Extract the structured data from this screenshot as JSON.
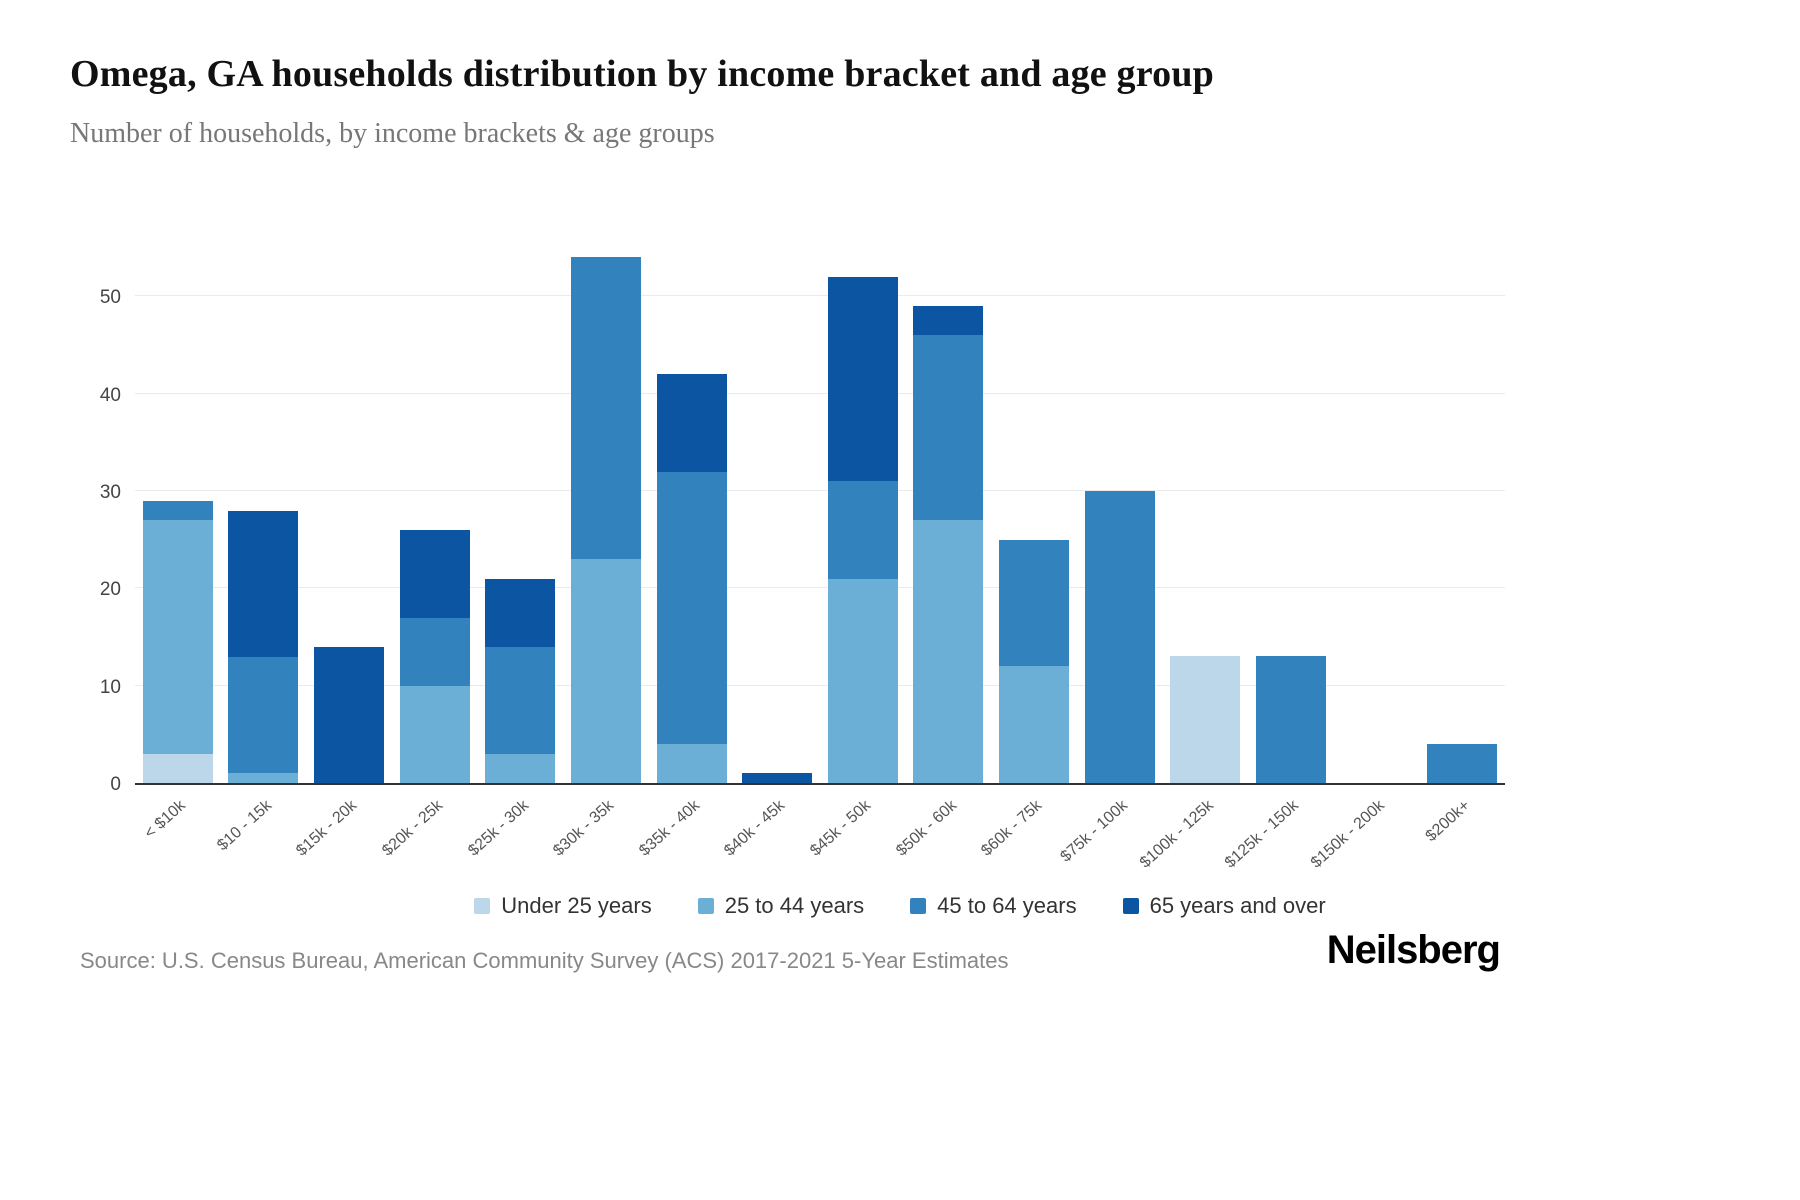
{
  "header": {
    "title": "Omega, GA households distribution by income bracket and age group",
    "subtitle": "Number of households, by income brackets & age groups"
  },
  "chart_data": {
    "type": "bar",
    "stacked": true,
    "title": "Omega, GA households distribution by income bracket and age group",
    "xlabel": "",
    "ylabel": "Number of households",
    "ylim": [
      0,
      56
    ],
    "yticks": [
      0,
      10,
      20,
      30,
      40,
      50
    ],
    "grid": true,
    "legend_position": "bottom",
    "categories": [
      "< $10k",
      "$10 - 15k",
      "$15k - 20k",
      "$20k - 25k",
      "$25k - 30k",
      "$30k - 35k",
      "$35k - 40k",
      "$40k - 45k",
      "$45k - 50k",
      "$50k - 60k",
      "$60k - 75k",
      "$75k - 100k",
      "$100k - 125k",
      "$125k - 150k",
      "$150k - 200k",
      "$200k+"
    ],
    "series": [
      {
        "name": "Under 25 years",
        "color": "#bcd7ea",
        "values": [
          3,
          0,
          0,
          0,
          0,
          0,
          0,
          0,
          0,
          0,
          0,
          0,
          13,
          0,
          0,
          0
        ]
      },
      {
        "name": "25 to 44 years",
        "color": "#6baed6",
        "values": [
          24,
          1,
          0,
          10,
          3,
          23,
          4,
          0,
          21,
          27,
          12,
          0,
          0,
          0,
          0,
          0
        ]
      },
      {
        "name": "45 to 64 years",
        "color": "#3182bd",
        "values": [
          2,
          12,
          0,
          7,
          11,
          31,
          28,
          0,
          10,
          19,
          13,
          30,
          0,
          13,
          0,
          4
        ]
      },
      {
        "name": "65 years and over",
        "color": "#0b55a3",
        "values": [
          0,
          15,
          14,
          9,
          7,
          0,
          10,
          1,
          21,
          3,
          0,
          0,
          0,
          0,
          0,
          0
        ]
      }
    ],
    "totals": [
      29,
      28,
      14,
      26,
      21,
      54,
      42,
      1,
      52,
      49,
      25,
      30,
      13,
      13,
      0,
      4
    ]
  },
  "footer": {
    "source": "Source: U.S. Census Bureau, American Community Survey (ACS) 2017-2021 5-Year Estimates",
    "brand": "Neilsberg"
  }
}
